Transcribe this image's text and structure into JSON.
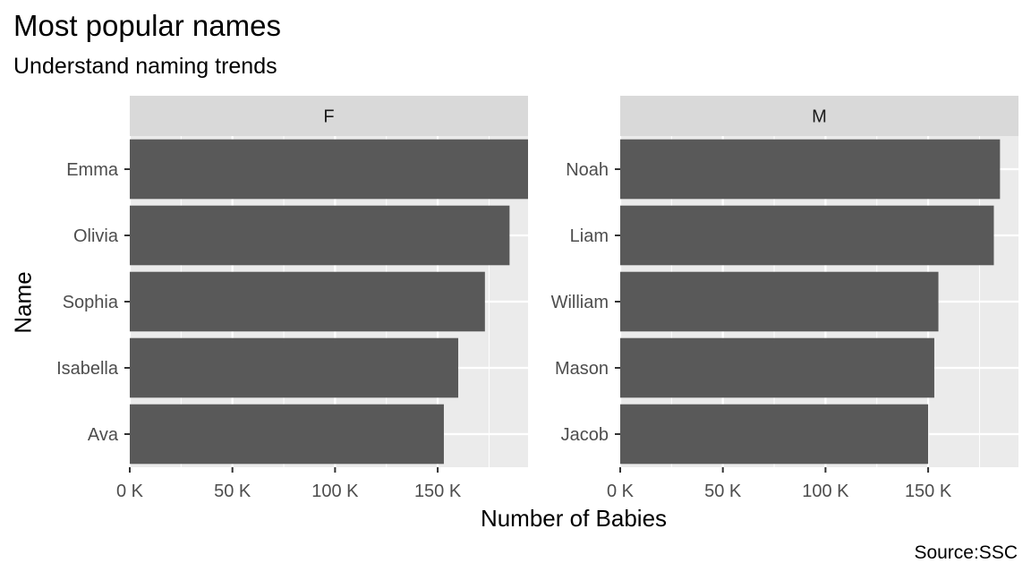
{
  "title": "Most popular names",
  "subtitle": "Understand naming trends",
  "caption": "Source:SSC",
  "chart_data": {
    "type": "bar",
    "orientation": "horizontal",
    "facet": "sex",
    "xlabel": "Number of Babies",
    "ylabel": "Name",
    "x_ticks": [
      0,
      50000,
      100000,
      150000
    ],
    "x_tick_labels": [
      "0 K",
      "50 K",
      "100 K",
      "150 K"
    ],
    "xlim": [
      0,
      194000
    ],
    "grid": true,
    "panels": [
      {
        "label": "F",
        "categories": [
          "Emma",
          "Olivia",
          "Sophia",
          "Isabella",
          "Ava"
        ],
        "values": [
          194000,
          185000,
          173000,
          160000,
          153000
        ]
      },
      {
        "label": "M",
        "categories": [
          "Noah",
          "Liam",
          "William",
          "Mason",
          "Jacob"
        ],
        "values": [
          185000,
          182000,
          155000,
          153000,
          150000
        ]
      }
    ],
    "colors": {
      "bar": "#595959",
      "panel_bg": "#ebebeb",
      "strip_bg": "#d9d9d9",
      "grid": "#ffffff",
      "tick": "#333333"
    }
  }
}
